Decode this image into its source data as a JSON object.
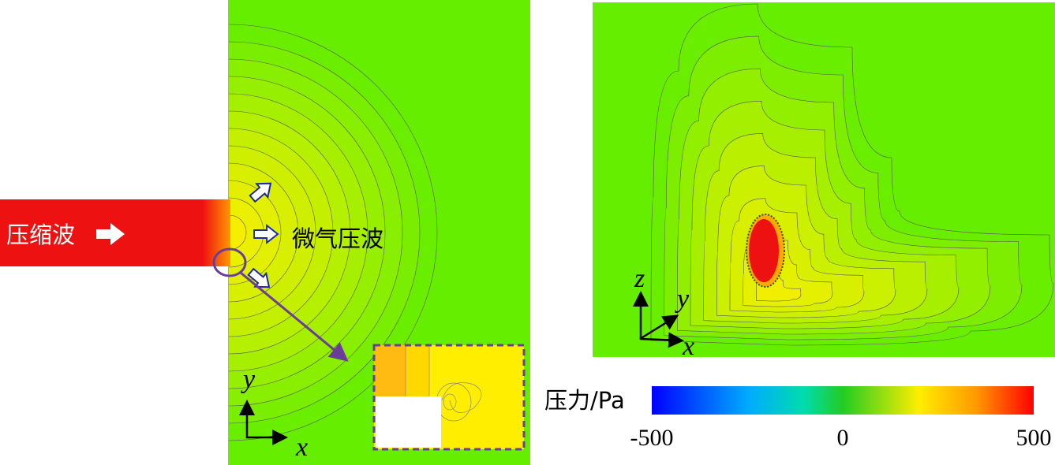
{
  "left_panel": {
    "wave_label": "压缩波",
    "micro_wave_label": "微气压波",
    "axis_y": "y",
    "axis_x": "x"
  },
  "right_panel": {
    "axis_z": "z",
    "axis_y": "y",
    "axis_x": "x"
  },
  "colorbar": {
    "label": "压力/Pa",
    "ticks": [
      -500,
      0,
      500
    ]
  }
}
